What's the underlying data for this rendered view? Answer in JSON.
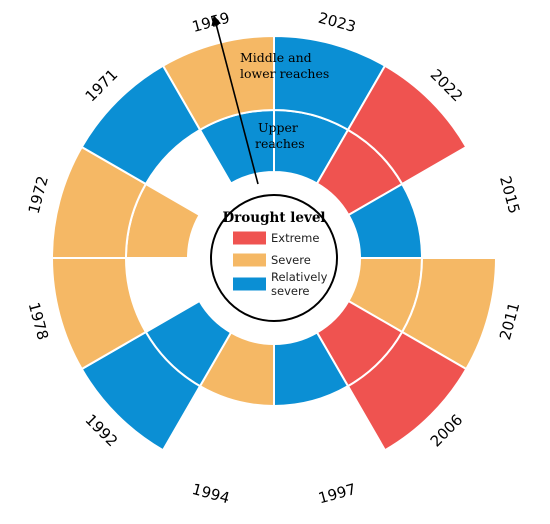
{
  "colors": {
    "Extreme": "#ef5350",
    "Severe": "#f5b865",
    "Relatively severe": "#0b8fd4"
  },
  "annotations": {
    "middle_lower": [
      "Middle and",
      "lower reaches"
    ],
    "upper": [
      "Upper",
      "reaches"
    ]
  },
  "chart_data": {
    "type": "polar-bar",
    "rings": [
      "Upper reaches",
      "Middle and lower reaches"
    ],
    "categories": [
      "1959",
      "2023",
      "2022",
      "2015",
      "2011",
      "2006",
      "1997",
      "1994",
      "1992",
      "1978",
      "1972",
      "1971"
    ],
    "upper": [
      "Relatively severe",
      "Relatively severe",
      "Extreme",
      "Relatively severe",
      "Severe",
      "Extreme",
      "Relatively severe",
      "Severe",
      "Relatively severe",
      "",
      "Severe",
      ""
    ],
    "middle_lower": [
      "Severe",
      "Relatively severe",
      "Extreme",
      "",
      "Severe",
      "Extreme",
      "",
      "",
      "Relatively severe",
      "Severe",
      "Severe",
      "Relatively severe"
    ],
    "legend": {
      "title": "Drought level",
      "entries": [
        {
          "label": [
            "Extreme"
          ],
          "level": "Extreme"
        },
        {
          "label": [
            "Severe"
          ],
          "level": "Severe"
        },
        {
          "label": [
            "Relatively",
            "severe"
          ],
          "level": "Relatively severe"
        }
      ]
    }
  }
}
